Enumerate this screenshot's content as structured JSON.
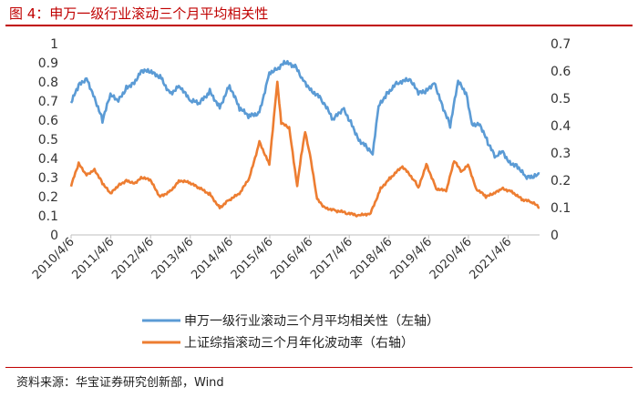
{
  "figure": {
    "title": "图 4：申万一级行业滚动三个月平均相关性",
    "source": "资料来源：华宝证券研究创新部，Wind"
  },
  "colors": {
    "rule": "#c00000",
    "series1": "#5b9bd5",
    "series2": "#ed7d31"
  },
  "chart_data": {
    "type": "line",
    "grid": false,
    "legend_position": "bottom",
    "x_tick_labels": [
      "2010/4/6",
      "2011/4/6",
      "2012/4/6",
      "2013/4/6",
      "2014/4/6",
      "2015/4/6",
      "2016/4/6",
      "2017/4/6",
      "2018/4/6",
      "2019/4/6",
      "2020/4/6",
      "2021/4/6"
    ],
    "y_left": {
      "min": 0,
      "max": 1,
      "ticks": [
        "1",
        "0.9",
        "0.8",
        "0.7",
        "0.6",
        "0.5",
        "0.4",
        "0.3",
        "0.2",
        "0.1",
        "0"
      ]
    },
    "y_right": {
      "min": 0,
      "max": 0.7,
      "ticks": [
        "0.7",
        "0.6",
        "0.5",
        "0.4",
        "0.3",
        "0.2",
        "0.1",
        "0"
      ]
    },
    "series": [
      {
        "name": "申万一级行业滚动三个月平均相关性（左轴）",
        "axis": "left",
        "color": "#5b9bd5",
        "x": [
          2010.26,
          2010.45,
          2010.65,
          2010.85,
          2011.05,
          2011.25,
          2011.45,
          2011.65,
          2011.85,
          2012.05,
          2012.25,
          2012.5,
          2012.75,
          2013.0,
          2013.25,
          2013.5,
          2013.75,
          2014.0,
          2014.25,
          2014.5,
          2014.75,
          2015.0,
          2015.25,
          2015.45,
          2015.65,
          2015.9,
          2016.1,
          2016.3,
          2016.6,
          2016.85,
          2017.1,
          2017.3,
          2017.5,
          2017.7,
          2017.85,
          2018.0,
          2018.2,
          2018.5,
          2018.8,
          2019.0,
          2019.2,
          2019.4,
          2019.6,
          2019.8,
          2020.0,
          2020.2,
          2020.35,
          2020.55,
          2020.75,
          2020.95,
          2021.1,
          2021.3,
          2021.5,
          2021.7,
          2021.9,
          2022.05
        ],
        "values": [
          0.69,
          0.78,
          0.82,
          0.72,
          0.6,
          0.73,
          0.7,
          0.77,
          0.8,
          0.86,
          0.85,
          0.83,
          0.74,
          0.78,
          0.7,
          0.69,
          0.75,
          0.67,
          0.78,
          0.66,
          0.62,
          0.64,
          0.85,
          0.87,
          0.9,
          0.88,
          0.81,
          0.76,
          0.7,
          0.6,
          0.66,
          0.59,
          0.5,
          0.46,
          0.42,
          0.67,
          0.74,
          0.8,
          0.81,
          0.74,
          0.75,
          0.8,
          0.68,
          0.57,
          0.8,
          0.74,
          0.58,
          0.58,
          0.48,
          0.4,
          0.44,
          0.38,
          0.36,
          0.3,
          0.3,
          0.32
        ]
      },
      {
        "name": "上证综指滚动三个月年化波动率（右轴）",
        "axis": "right",
        "color": "#ed7d31",
        "x": [
          2010.26,
          2010.45,
          2010.65,
          2010.85,
          2011.05,
          2011.25,
          2011.45,
          2011.65,
          2011.85,
          2012.05,
          2012.25,
          2012.5,
          2012.75,
          2013.0,
          2013.25,
          2013.5,
          2013.75,
          2014.0,
          2014.25,
          2014.5,
          2014.75,
          2015.0,
          2015.25,
          2015.45,
          2015.55,
          2015.75,
          2015.95,
          2016.05,
          2016.15,
          2016.3,
          2016.45,
          2016.65,
          2016.9,
          2017.2,
          2017.5,
          2017.8,
          2018.05,
          2018.3,
          2018.6,
          2018.9,
          2019.0,
          2019.2,
          2019.45,
          2019.7,
          2019.9,
          2020.1,
          2020.25,
          2020.45,
          2020.7,
          2020.9,
          2021.1,
          2021.35,
          2021.6,
          2021.85,
          2022.05
        ],
        "values": [
          0.18,
          0.26,
          0.22,
          0.24,
          0.19,
          0.15,
          0.18,
          0.2,
          0.19,
          0.21,
          0.2,
          0.14,
          0.16,
          0.2,
          0.19,
          0.17,
          0.15,
          0.1,
          0.13,
          0.15,
          0.21,
          0.34,
          0.26,
          0.56,
          0.41,
          0.39,
          0.18,
          0.29,
          0.38,
          0.27,
          0.13,
          0.1,
          0.09,
          0.08,
          0.07,
          0.08,
          0.17,
          0.21,
          0.25,
          0.2,
          0.17,
          0.26,
          0.17,
          0.16,
          0.27,
          0.23,
          0.26,
          0.17,
          0.14,
          0.15,
          0.17,
          0.16,
          0.13,
          0.12,
          0.1
        ]
      }
    ]
  }
}
